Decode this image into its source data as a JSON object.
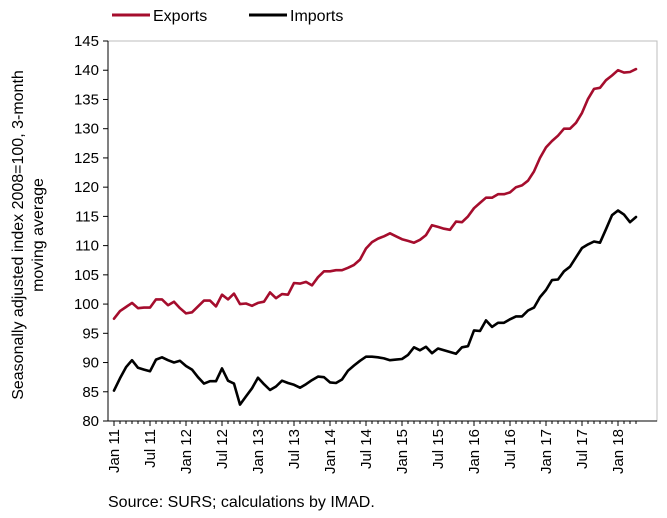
{
  "chart_data": {
    "type": "line",
    "ylabel_line1": "Seasonally adjusted index 2008=100, 3-month",
    "ylabel_line2": "moving average",
    "source": "Source: SURS; calculations by IMAD.",
    "ylim": [
      80,
      145
    ],
    "yticks": [
      80,
      85,
      90,
      95,
      100,
      105,
      110,
      115,
      120,
      125,
      130,
      135,
      140,
      145
    ],
    "grid": false,
    "legend_position": "top",
    "x_start": "Jan 11",
    "x_tick_labels": [
      "Jan 11",
      "Jul 11",
      "Jan 12",
      "Jul 12",
      "Jan 13",
      "Jul 13",
      "Jan 14",
      "Jul 14",
      "Jan 15",
      "Jul 15",
      "Jan 16",
      "Jul 16",
      "Jan 17",
      "Jul 17",
      "Jan 18"
    ],
    "series": [
      {
        "name": "Exports",
        "color": "#a50d2d",
        "values": [
          97.5,
          98.8,
          99.5,
          100.2,
          99.3,
          99.4,
          99.4,
          100.8,
          100.8,
          99.8,
          100.4,
          99.3,
          98.4,
          98.6,
          99.6,
          100.6,
          100.6,
          99.6,
          101.6,
          100.8,
          101.8,
          100.0,
          100.1,
          99.7,
          100.2,
          100.4,
          102.0,
          101.0,
          101.7,
          101.6,
          103.6,
          103.5,
          103.8,
          103.2,
          104.6,
          105.6,
          105.6,
          105.8,
          105.8,
          106.2,
          106.7,
          107.6,
          109.5,
          110.6,
          111.2,
          111.6,
          112.1,
          111.6,
          111.1,
          110.8,
          110.5,
          111.0,
          111.8,
          113.5,
          113.2,
          112.9,
          112.7,
          114.1,
          114.0,
          115.0,
          116.4,
          117.3,
          118.2,
          118.2,
          118.8,
          118.8,
          119.1,
          120.0,
          120.3,
          121.1,
          122.7,
          125.0,
          126.8,
          127.9,
          128.8,
          130.0,
          130.0,
          131.0,
          132.7,
          135.1,
          136.8,
          137.0,
          138.3,
          139.1,
          140.0,
          139.6,
          139.7,
          140.2
        ]
      },
      {
        "name": "Imports",
        "color": "#000000",
        "values": [
          85.2,
          87.3,
          89.2,
          90.4,
          89.1,
          88.8,
          88.5,
          90.5,
          90.9,
          90.4,
          90.0,
          90.3,
          89.4,
          88.8,
          87.5,
          86.4,
          86.8,
          86.8,
          89.0,
          86.9,
          86.4,
          82.8,
          84.2,
          85.6,
          87.4,
          86.3,
          85.3,
          85.9,
          86.9,
          86.5,
          86.2,
          85.7,
          86.3,
          87.0,
          87.6,
          87.5,
          86.6,
          86.5,
          87.1,
          88.6,
          89.5,
          90.3,
          91.0,
          91.0,
          90.9,
          90.7,
          90.4,
          90.5,
          90.6,
          91.3,
          92.6,
          92.1,
          92.7,
          91.6,
          92.4,
          92.1,
          91.8,
          91.5,
          92.6,
          92.8,
          95.5,
          95.4,
          97.2,
          96.1,
          96.8,
          96.8,
          97.4,
          97.9,
          97.9,
          98.9,
          99.4,
          101.2,
          102.4,
          104.1,
          104.2,
          105.6,
          106.4,
          108.0,
          109.6,
          110.2,
          110.7,
          110.5,
          112.8,
          115.2,
          116.0,
          115.3,
          114.0,
          114.9
        ]
      }
    ]
  }
}
